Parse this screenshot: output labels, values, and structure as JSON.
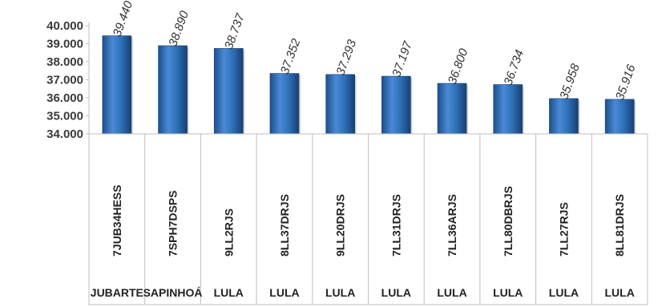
{
  "chart_data": {
    "type": "bar",
    "title": "",
    "xlabel": "",
    "ylabel": "",
    "ylim": [
      34000,
      40000
    ],
    "yticks": [
      34000,
      35000,
      36000,
      37000,
      38000,
      39000,
      40000
    ],
    "ytick_labels": [
      "34.000",
      "35.000",
      "36.000",
      "37.000",
      "38.000",
      "39.000",
      "40.000"
    ],
    "grid": false,
    "bar_color": "#2e6fb7",
    "categories": [
      "7JUB34HESS",
      "7SPH7DSPS",
      "9LL2RJS",
      "8LL37DRJS",
      "9LL20DRJS",
      "7LL31DRJS",
      "7LL36ARJS",
      "7LL80DBRJS",
      "7LL27RJS",
      "8LL81DRJS"
    ],
    "groups": [
      "JUBARTE",
      "SAPINHOÁ",
      "LULA",
      "LULA",
      "LULA",
      "LULA",
      "LULA",
      "LULA",
      "LULA",
      "LULA"
    ],
    "values": [
      39440,
      38890,
      38737,
      37352,
      37293,
      37197,
      36800,
      36734,
      35958,
      35916
    ],
    "value_labels": [
      "39.440",
      "38.890",
      "38.737",
      "37.352",
      "37.293",
      "37.197",
      "36.800",
      "36.734",
      "35.958",
      "35.916"
    ]
  }
}
